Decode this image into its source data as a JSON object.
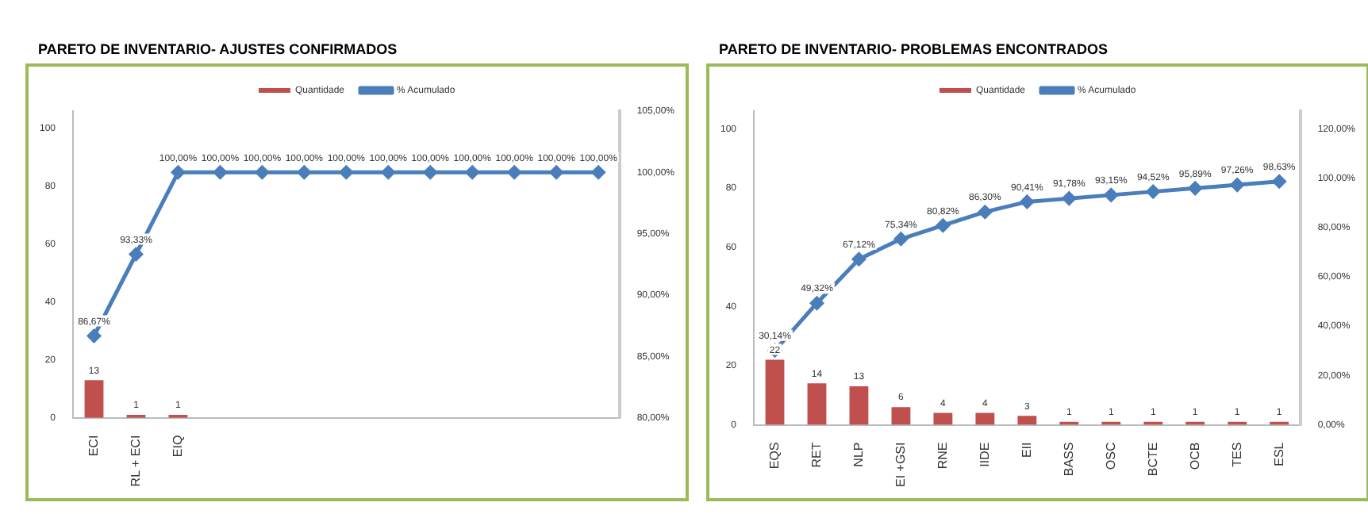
{
  "chart_data": [
    {
      "type": "bar",
      "title": "PARETO DE INVENTARIO- AJUSTES CONFIRMADOS",
      "categories": [
        "ECI",
        "RL + ECI",
        "EIQ",
        null,
        null,
        null,
        null,
        null,
        null,
        null,
        null,
        null,
        null
      ],
      "series": [
        {
          "name": "Quantidade",
          "color": "#c0504d",
          "values": [
            13,
            1,
            1,
            null,
            null,
            null,
            null,
            null,
            null,
            null,
            null,
            null,
            null
          ],
          "value_labels": [
            "13",
            "1",
            "1",
            null,
            null,
            null,
            null,
            null,
            null,
            null,
            null,
            null,
            null
          ]
        },
        {
          "name": "% Acumulado",
          "type": "line",
          "axis": "y2",
          "color": "#4a7ebb",
          "values": [
            86.67,
            93.33,
            100,
            100,
            100,
            100,
            100,
            100,
            100,
            100,
            100,
            100,
            100
          ],
          "value_labels": [
            "86,67%",
            "93,33%",
            "100,00%",
            "100,00%",
            "100,00%",
            "100,00%",
            "100,00%",
            "100,00%",
            "100,00%",
            "100,00%",
            "100,00%",
            "100,00%",
            "100,00%"
          ]
        }
      ],
      "ylim": [
        0,
        106
      ],
      "yticks": [
        0,
        20,
        40,
        60,
        80,
        100
      ],
      "y2lim": [
        80,
        105
      ],
      "y2ticks": [
        {
          "value": 80,
          "label": "80,00%"
        },
        {
          "value": 85,
          "label": "85,00%"
        },
        {
          "value": 90,
          "label": "90,00%"
        },
        {
          "value": 95,
          "label": "95,00%"
        },
        {
          "value": 100,
          "label": "100,00%"
        },
        {
          "value": 105,
          "label": "105,00%"
        }
      ],
      "legend": "top",
      "marker": "diamond"
    },
    {
      "type": "bar",
      "title": "PARETO DE INVENTARIO- PROBLEMAS ENCONTRADOS",
      "categories": [
        "EQS",
        "RET",
        "NLP",
        "EI +GSI",
        "RNE",
        "IIDE",
        "EII",
        "BASS",
        "OSC",
        "BCTE",
        "OCB",
        "TES",
        "ESL"
      ],
      "series": [
        {
          "name": "Quantidade",
          "color": "#c0504d",
          "values": [
            22,
            14,
            13,
            6,
            4,
            4,
            3,
            1,
            1,
            1,
            1,
            1,
            1
          ],
          "value_labels": [
            "22",
            "14",
            "13",
            "6",
            "4",
            "4",
            "3",
            "1",
            "1",
            "1",
            "1",
            "1",
            "1"
          ]
        },
        {
          "name": "% Acumulado",
          "type": "line",
          "axis": "y2",
          "color": "#4a7ebb",
          "values": [
            30.14,
            49.32,
            67.12,
            75.34,
            80.82,
            86.3,
            90.41,
            91.78,
            93.15,
            94.52,
            95.89,
            97.26,
            98.63
          ],
          "value_labels": [
            "30,14%",
            "49,32%",
            "67,12%",
            "75,34%",
            "80,82%",
            "86,30%",
            "90,41%",
            "91,78%",
            "93,15%",
            "94,52%",
            "95,89%",
            "97,26%",
            "98,63%"
          ]
        }
      ],
      "ylim": [
        0,
        106
      ],
      "yticks": [
        0,
        20,
        40,
        60,
        80,
        100
      ],
      "y2lim": [
        0,
        127.2
      ],
      "y2ticks": [
        {
          "value": 0,
          "label": "0,00%"
        },
        {
          "value": 20,
          "label": "20,00%"
        },
        {
          "value": 40,
          "label": "40,00%"
        },
        {
          "value": 60,
          "label": "60,00%"
        },
        {
          "value": 80,
          "label": "80,00%"
        },
        {
          "value": 100,
          "label": "100,00%"
        },
        {
          "value": 120,
          "label": "120,00%"
        }
      ],
      "legend": "top",
      "marker": "diamond"
    }
  ]
}
